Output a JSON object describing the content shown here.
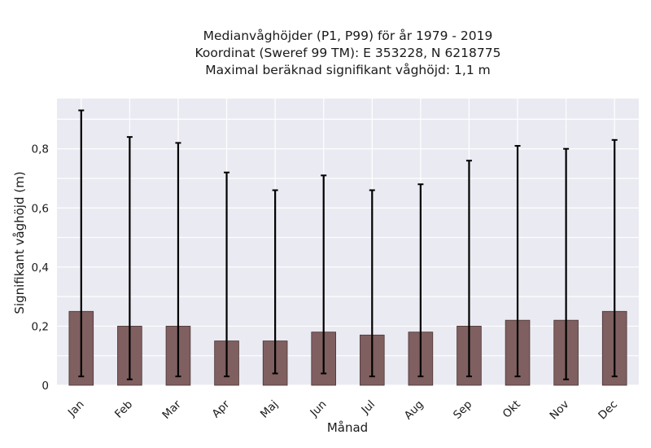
{
  "chart_data": {
    "type": "bar",
    "title_lines": [
      "Medianvåghöjder (P1, P99) för år 1979 - 2019",
      "Koordinat (Sweref 99 TM): E 353228, N 6218775",
      "Maximal beräknad signifikant våghöjd: 1,1 m"
    ],
    "xlabel": "Månad",
    "ylabel": "Signifikant våghöjd (m)",
    "categories": [
      "Jan",
      "Feb",
      "Mar",
      "Apr",
      "Maj",
      "Jun",
      "Jul",
      "Aug",
      "Sep",
      "Okt",
      "Nov",
      "Dec"
    ],
    "values": [
      0.25,
      0.2,
      0.2,
      0.15,
      0.15,
      0.18,
      0.17,
      0.18,
      0.2,
      0.22,
      0.22,
      0.25
    ],
    "error_low": [
      0.03,
      0.02,
      0.03,
      0.03,
      0.04,
      0.04,
      0.03,
      0.03,
      0.03,
      0.03,
      0.02,
      0.03
    ],
    "error_high": [
      0.93,
      0.84,
      0.82,
      0.72,
      0.66,
      0.71,
      0.66,
      0.68,
      0.76,
      0.81,
      0.8,
      0.83
    ],
    "ylim": [
      0,
      0.97
    ],
    "yticks": [
      0,
      0.2,
      0.4,
      0.6,
      0.8
    ],
    "ytick_labels": [
      "0",
      "0,2",
      "0,4",
      "0,6",
      "0,8"
    ],
    "grid": true,
    "colors": {
      "bar": "#7f5f5f",
      "bar_edge": "#4a3535",
      "error": "#000000",
      "plot_bg": "#eaeaf2",
      "grid": "#ffffff"
    }
  }
}
